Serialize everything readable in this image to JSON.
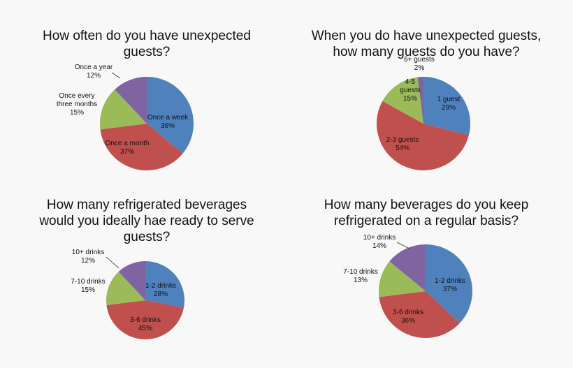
{
  "colors": {
    "blue": "#4f81bd",
    "red": "#c0504d",
    "green": "#9bbb59",
    "purple": "#8064a2",
    "background": "#f8f8f8"
  },
  "chart_data": [
    {
      "type": "pie",
      "title": "How often do you have unexpected\nguests?",
      "slices": [
        {
          "label": "Once a week",
          "value": 36,
          "value_label": "36%",
          "color": "#4f81bd"
        },
        {
          "label": "Once a month",
          "value": 37,
          "value_label": "37%",
          "color": "#c0504d"
        },
        {
          "label": "Once every three months",
          "value": 15,
          "value_label": "15%",
          "color": "#9bbb59"
        },
        {
          "label": "Once a year",
          "value": 12,
          "value_label": "12%",
          "color": "#8064a2"
        }
      ]
    },
    {
      "type": "pie",
      "title": "When you do have unexpected guests,\nhow many guests do you have?",
      "slices": [
        {
          "label": "1 guest",
          "value": 29,
          "value_label": "29%",
          "color": "#4f81bd"
        },
        {
          "label": "2-3 guests",
          "value": 54,
          "value_label": "54%",
          "color": "#c0504d"
        },
        {
          "label": "4-5 guests",
          "value": 15,
          "value_label": "15%",
          "color": "#9bbb59"
        },
        {
          "label": "6+ guests",
          "value": 2,
          "value_label": "2%",
          "color": "#8064a2"
        }
      ]
    },
    {
      "type": "pie",
      "title": "How many refrigerated beverages\nwould you ideally hae ready to serve\nguests?",
      "slices": [
        {
          "label": "1-2 drinks",
          "value": 28,
          "value_label": "28%",
          "color": "#4f81bd"
        },
        {
          "label": "3-6 drinks",
          "value": 45,
          "value_label": "45%",
          "color": "#c0504d"
        },
        {
          "label": "7-10 drinks",
          "value": 15,
          "value_label": "15%",
          "color": "#9bbb59"
        },
        {
          "label": "10+ drinks",
          "value": 12,
          "value_label": "12%",
          "color": "#8064a2"
        }
      ]
    },
    {
      "type": "pie",
      "title": "How many beverages do you keep\nrefrigerated on a regular basis?",
      "slices": [
        {
          "label": "1-2 drinks",
          "value": 37,
          "value_label": "37%",
          "color": "#4f81bd"
        },
        {
          "label": "3-6 drinks",
          "value": 36,
          "value_label": "36%",
          "color": "#c0504d"
        },
        {
          "label": "7-10 drinks",
          "value": 13,
          "value_label": "13%",
          "color": "#9bbb59"
        },
        {
          "label": "10+ drinks",
          "value": 14,
          "value_label": "14%",
          "color": "#8064a2"
        }
      ]
    }
  ]
}
